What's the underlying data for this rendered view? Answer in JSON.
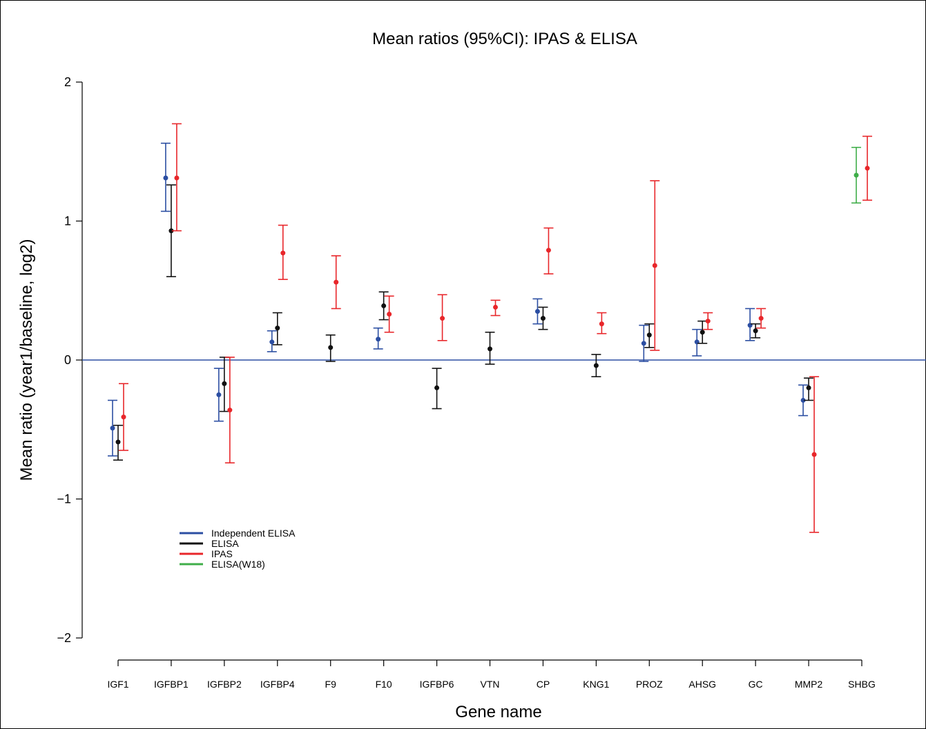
{
  "chart_data": {
    "type": "scatter",
    "title": "Mean ratios (95%CI): IPAS & ELISA",
    "xlabel": "Gene name",
    "ylabel": "Mean ratio (year1/baseline, log2)",
    "ylim": [
      -2,
      2
    ],
    "yticks": [
      -2,
      -1,
      0,
      1,
      2
    ],
    "ytick_labels": [
      "−2",
      "−1",
      "0",
      "1",
      "2"
    ],
    "reference_line": 0,
    "legend_position": "lower-left",
    "categories": [
      "IGF1",
      "IGFBP1",
      "IGFBP2",
      "IGFBP4",
      "F9",
      "F10",
      "IGFBP6",
      "VTN",
      "CP",
      "KNG1",
      "PROZ",
      "AHSG",
      "GC",
      "MMP2",
      "SHBG"
    ],
    "series": [
      {
        "name": "Independent ELISA",
        "color": "#2b4ea2",
        "offset": -1,
        "points": [
          {
            "category": "IGF1",
            "mean": -0.49,
            "lower": -0.69,
            "upper": -0.29
          },
          {
            "category": "IGFBP1",
            "mean": 1.31,
            "lower": 1.07,
            "upper": 1.56
          },
          {
            "category": "IGFBP2",
            "mean": -0.25,
            "lower": -0.44,
            "upper": -0.06
          },
          {
            "category": "IGFBP4",
            "mean": 0.13,
            "lower": 0.06,
            "upper": 0.21
          },
          {
            "category": "F10",
            "mean": 0.15,
            "lower": 0.08,
            "upper": 0.23
          },
          {
            "category": "CP",
            "mean": 0.35,
            "lower": 0.26,
            "upper": 0.44
          },
          {
            "category": "PROZ",
            "mean": 0.12,
            "lower": -0.01,
            "upper": 0.25
          },
          {
            "category": "AHSG",
            "mean": 0.13,
            "lower": 0.03,
            "upper": 0.22
          },
          {
            "category": "GC",
            "mean": 0.25,
            "lower": 0.14,
            "upper": 0.37
          },
          {
            "category": "MMP2",
            "mean": -0.29,
            "lower": -0.4,
            "upper": -0.18
          }
        ]
      },
      {
        "name": "ELISA",
        "color": "#111111",
        "offset": 0,
        "points": [
          {
            "category": "IGF1",
            "mean": -0.59,
            "lower": -0.72,
            "upper": -0.47
          },
          {
            "category": "IGFBP1",
            "mean": 0.93,
            "lower": 0.6,
            "upper": 1.26
          },
          {
            "category": "IGFBP2",
            "mean": -0.17,
            "lower": -0.37,
            "upper": 0.02
          },
          {
            "category": "IGFBP4",
            "mean": 0.23,
            "lower": 0.11,
            "upper": 0.34
          },
          {
            "category": "F9",
            "mean": 0.09,
            "lower": -0.01,
            "upper": 0.18
          },
          {
            "category": "F10",
            "mean": 0.39,
            "lower": 0.29,
            "upper": 0.49
          },
          {
            "category": "IGFBP6",
            "mean": -0.2,
            "lower": -0.35,
            "upper": -0.06
          },
          {
            "category": "VTN",
            "mean": 0.08,
            "lower": -0.03,
            "upper": 0.2
          },
          {
            "category": "CP",
            "mean": 0.3,
            "lower": 0.22,
            "upper": 0.38
          },
          {
            "category": "KNG1",
            "mean": -0.04,
            "lower": -0.12,
            "upper": 0.04
          },
          {
            "category": "PROZ",
            "mean": 0.18,
            "lower": 0.09,
            "upper": 0.26
          },
          {
            "category": "AHSG",
            "mean": 0.2,
            "lower": 0.12,
            "upper": 0.28
          },
          {
            "category": "GC",
            "mean": 0.21,
            "lower": 0.16,
            "upper": 0.26
          },
          {
            "category": "MMP2",
            "mean": -0.2,
            "lower": -0.29,
            "upper": -0.13
          }
        ]
      },
      {
        "name": "IPAS",
        "color": "#e8262a",
        "offset": 1,
        "points": [
          {
            "category": "IGF1",
            "mean": -0.41,
            "lower": -0.65,
            "upper": -0.17
          },
          {
            "category": "IGFBP1",
            "mean": 1.31,
            "lower": 0.93,
            "upper": 1.7
          },
          {
            "category": "IGFBP2",
            "mean": -0.36,
            "lower": -0.74,
            "upper": 0.02
          },
          {
            "category": "IGFBP4",
            "mean": 0.77,
            "lower": 0.58,
            "upper": 0.97
          },
          {
            "category": "F9",
            "mean": 0.56,
            "lower": 0.37,
            "upper": 0.75
          },
          {
            "category": "F10",
            "mean": 0.33,
            "lower": 0.2,
            "upper": 0.46
          },
          {
            "category": "IGFBP6",
            "mean": 0.3,
            "lower": 0.14,
            "upper": 0.47
          },
          {
            "category": "VTN",
            "mean": 0.38,
            "lower": 0.32,
            "upper": 0.43
          },
          {
            "category": "CP",
            "mean": 0.79,
            "lower": 0.62,
            "upper": 0.95
          },
          {
            "category": "KNG1",
            "mean": 0.26,
            "lower": 0.19,
            "upper": 0.34
          },
          {
            "category": "PROZ",
            "mean": 0.68,
            "lower": 0.07,
            "upper": 1.29
          },
          {
            "category": "AHSG",
            "mean": 0.28,
            "lower": 0.22,
            "upper": 0.34
          },
          {
            "category": "GC",
            "mean": 0.3,
            "lower": 0.23,
            "upper": 0.37
          },
          {
            "category": "MMP2",
            "mean": -0.68,
            "lower": -1.24,
            "upper": -0.12
          },
          {
            "category": "SHBG",
            "mean": 1.38,
            "lower": 1.15,
            "upper": 1.61
          }
        ]
      },
      {
        "name": "ELISA(W18)",
        "color": "#3fae49",
        "offset": -1,
        "points": [
          {
            "category": "SHBG",
            "mean": 1.33,
            "lower": 1.13,
            "upper": 1.53
          }
        ]
      }
    ]
  }
}
